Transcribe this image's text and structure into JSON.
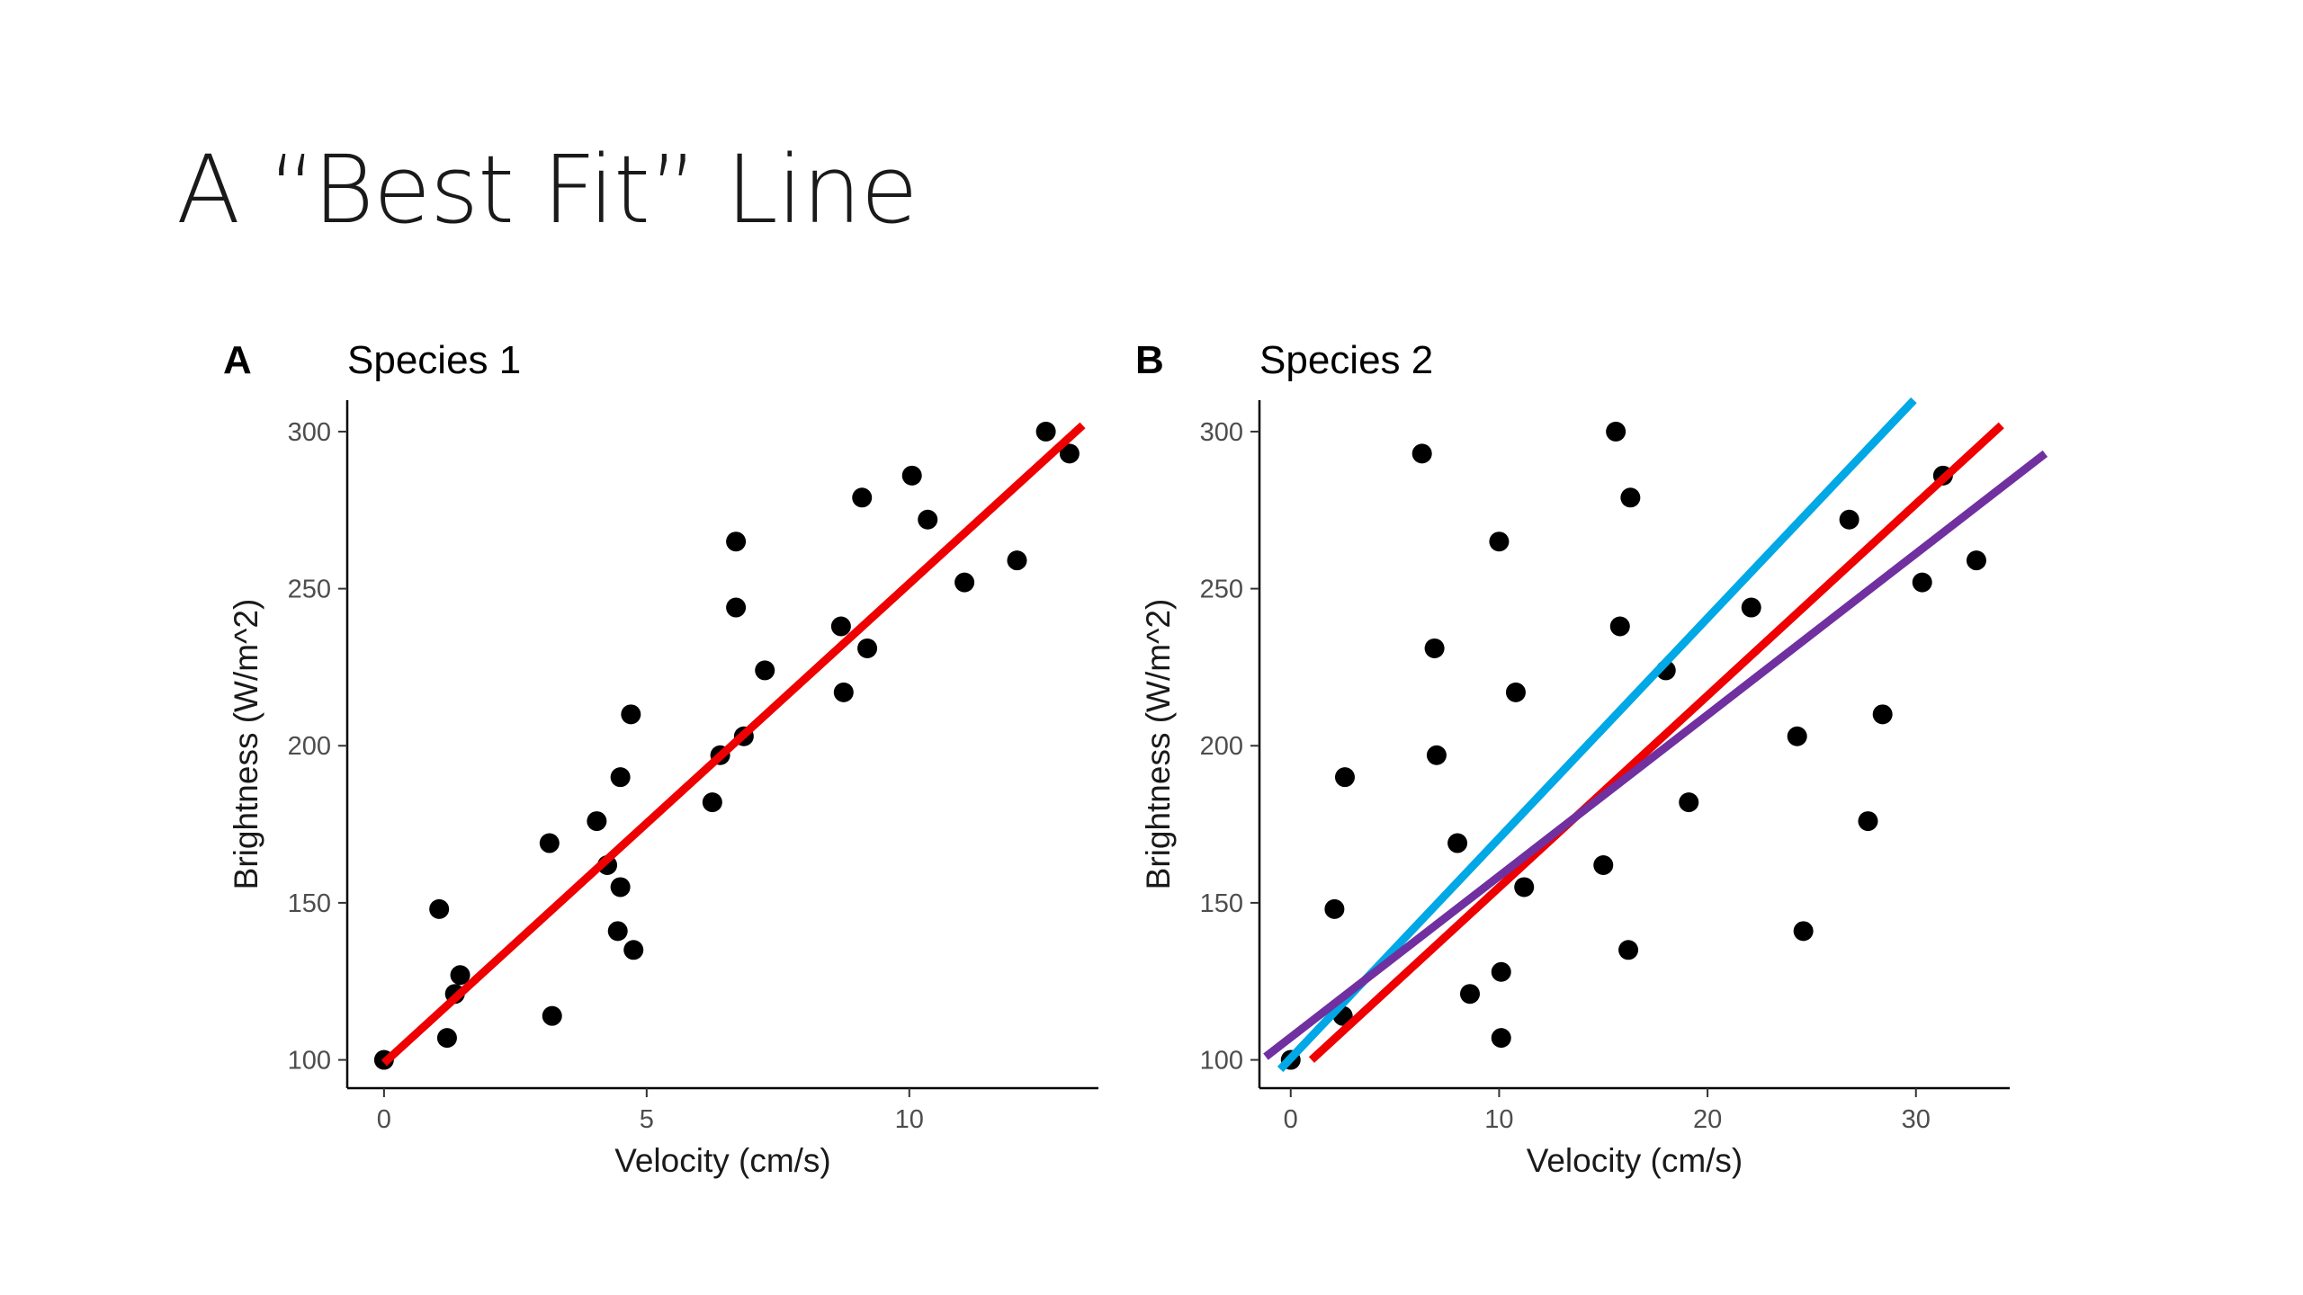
{
  "slide": {
    "title": "A “Best Fit” Line"
  },
  "chart_data": [
    {
      "panel": "A",
      "type": "scatter",
      "title": "Species 1",
      "xlabel": "Velocity (cm/s)",
      "ylabel": "Brightness (W/m^2)",
      "xlim": [
        -0.7,
        13.6
      ],
      "ylim": [
        91,
        310
      ],
      "xticks": [
        0,
        5,
        10
      ],
      "yticks": [
        100,
        150,
        200,
        250,
        300
      ],
      "points": [
        [
          0,
          100
        ],
        [
          1.05,
          148
        ],
        [
          1.2,
          107
        ],
        [
          1.35,
          121
        ],
        [
          1.45,
          127
        ],
        [
          3.15,
          169
        ],
        [
          3.2,
          114
        ],
        [
          4.05,
          176
        ],
        [
          4.25,
          162
        ],
        [
          4.45,
          141
        ],
        [
          4.5,
          190
        ],
        [
          4.5,
          155
        ],
        [
          4.75,
          135
        ],
        [
          4.7,
          210
        ],
        [
          6.25,
          182
        ],
        [
          6.4,
          197
        ],
        [
          6.7,
          265
        ],
        [
          6.7,
          244
        ],
        [
          6.85,
          203
        ],
        [
          7.25,
          224
        ],
        [
          8.7,
          238
        ],
        [
          8.75,
          217
        ],
        [
          9.1,
          279
        ],
        [
          9.2,
          231
        ],
        [
          10.05,
          286
        ],
        [
          10.35,
          272
        ],
        [
          11.05,
          252
        ],
        [
          12.05,
          259
        ],
        [
          12.6,
          300
        ],
        [
          13.05,
          293
        ]
      ],
      "fit_lines": [
        {
          "name": "best fit",
          "color": "#ee0000",
          "x": [
            0,
            13.3
          ],
          "y": [
            99,
            302
          ]
        }
      ]
    },
    {
      "panel": "B",
      "type": "scatter",
      "title": "Species 2",
      "xlabel": "Velocity (cm/s)",
      "ylabel": "Brightness (W/m^2)",
      "xlim": [
        -1.5,
        34.5
      ],
      "ylim": [
        91,
        310
      ],
      "xticks": [
        0,
        10,
        20,
        30
      ],
      "yticks": [
        100,
        150,
        200,
        250,
        300
      ],
      "points": [
        [
          0,
          100
        ],
        [
          2.1,
          148
        ],
        [
          2.5,
          114
        ],
        [
          2.6,
          190
        ],
        [
          6.3,
          293
        ],
        [
          6.9,
          231
        ],
        [
          7,
          197
        ],
        [
          8,
          169
        ],
        [
          8.6,
          121
        ],
        [
          10,
          265
        ],
        [
          10.1,
          128
        ],
        [
          10.1,
          107
        ],
        [
          10.8,
          217
        ],
        [
          11.2,
          155
        ],
        [
          15,
          162
        ],
        [
          15.6,
          300
        ],
        [
          15.8,
          238
        ],
        [
          16.2,
          135
        ],
        [
          16.3,
          279
        ],
        [
          18,
          224
        ],
        [
          19.1,
          182
        ],
        [
          22.1,
          244
        ],
        [
          24.3,
          203
        ],
        [
          24.6,
          141
        ],
        [
          26.8,
          272
        ],
        [
          27.7,
          176
        ],
        [
          28.4,
          210
        ],
        [
          30.3,
          252
        ],
        [
          31.3,
          286
        ],
        [
          32.9,
          259
        ]
      ],
      "fit_lines": [
        {
          "name": "blue line",
          "color": "#00a8e6",
          "x": [
            -0.5,
            29.9
          ],
          "y": [
            97,
            310
          ]
        },
        {
          "name": "red line",
          "color": "#ee0000",
          "x": [
            1,
            34.1
          ],
          "y": [
            100,
            302
          ]
        },
        {
          "name": "purple line",
          "color": "#7030a0",
          "x": [
            -1.2,
            36.2
          ],
          "y": [
            101,
            293
          ]
        }
      ]
    }
  ]
}
